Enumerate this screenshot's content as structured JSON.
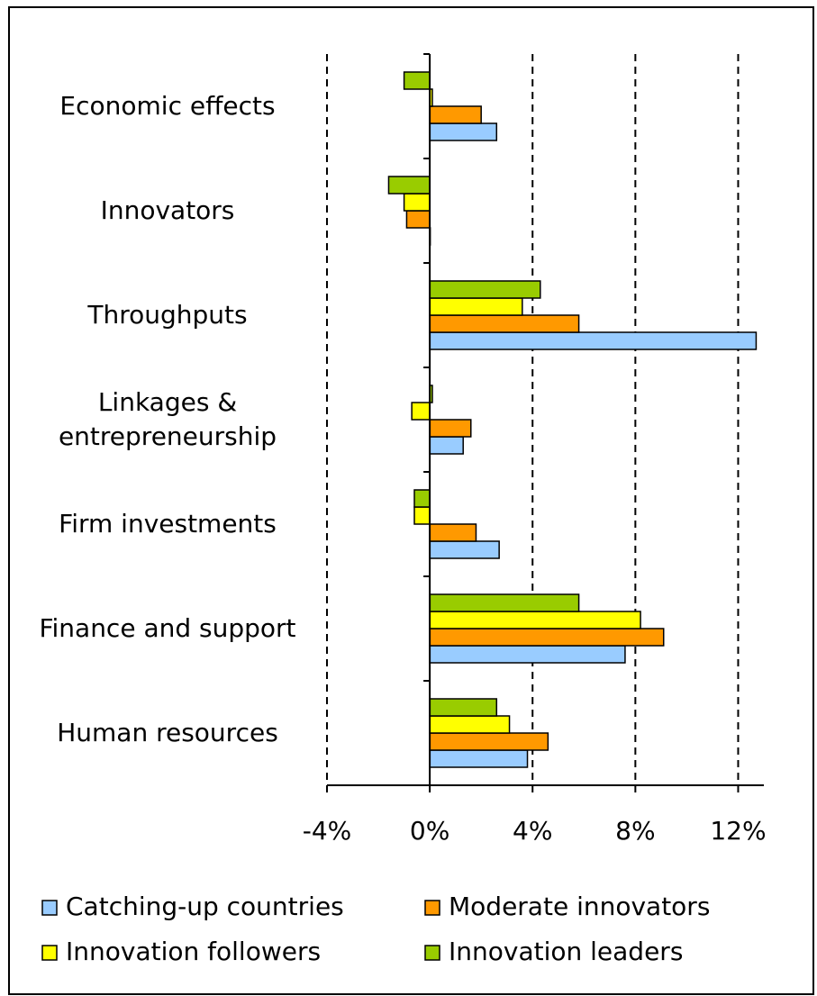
{
  "chart_data": {
    "type": "barh",
    "categories": [
      "Economic effects",
      "Innovators",
      "Throughputs",
      "Linkages & entrepreneurship",
      "Firm investments",
      "Finance and support",
      "Human resources"
    ],
    "series": [
      {
        "name": "Catching-up countries",
        "color": "#99ccff",
        "values": [
          2.6,
          0,
          12.7,
          1.3,
          2.7,
          7.6,
          3.8
        ]
      },
      {
        "name": "Moderate innovators",
        "color": "#ff9900",
        "values": [
          2.0,
          -0.9,
          5.8,
          1.6,
          1.8,
          9.1,
          4.6
        ]
      },
      {
        "name": "Innovation followers",
        "color": "#ffff00",
        "values": [
          0.1,
          -1.0,
          3.6,
          -0.7,
          -0.6,
          8.2,
          3.1
        ]
      },
      {
        "name": "Innovation leaders",
        "color": "#99cc00",
        "values": [
          -1.0,
          -1.6,
          4.3,
          0.1,
          -0.6,
          5.8,
          2.6
        ]
      }
    ],
    "xlim": [
      -4,
      13
    ],
    "xticks": [
      {
        "value": -4,
        "label": "-4%"
      },
      {
        "value": 0,
        "label": "0%"
      },
      {
        "value": 4,
        "label": "4%"
      },
      {
        "value": 8,
        "label": "8%"
      },
      {
        "value": 12,
        "label": "12%"
      }
    ],
    "grid": true,
    "legend": "bottom"
  }
}
